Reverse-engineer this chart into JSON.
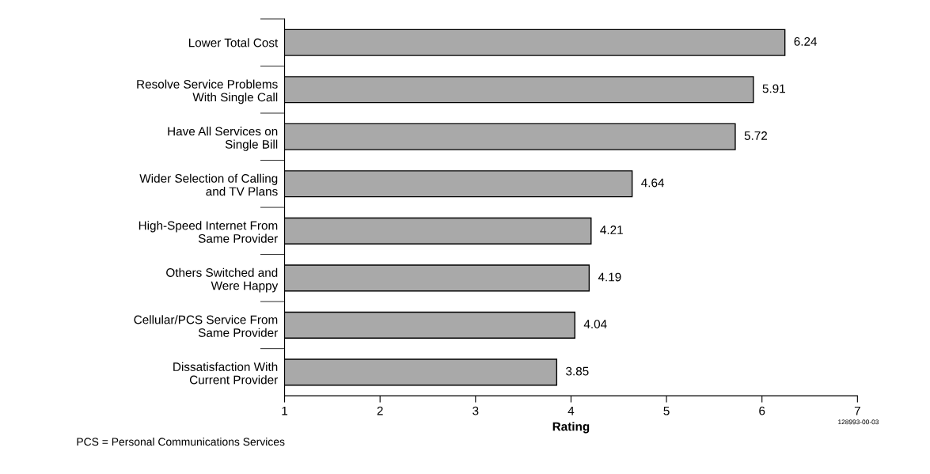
{
  "chart_data": {
    "type": "bar",
    "orientation": "horizontal",
    "xlabel": "Rating",
    "categories": [
      "Lower Total Cost",
      "Resolve Service Problems\nWith Single Call",
      "Have All Services on\nSingle Bill",
      "Wider Selection of Calling\nand TV Plans",
      "High-Speed Internet From\nSame Provider",
      "Others Switched and\nWere Happy",
      "Cellular/PCS Service From\nSame Provider",
      "Dissatisfaction With\nCurrent Provider"
    ],
    "values": [
      6.24,
      5.91,
      5.72,
      4.64,
      4.21,
      4.19,
      4.04,
      3.85
    ],
    "color": "#a9a9a9",
    "xlim": [
      1,
      7
    ],
    "xticks": [
      1,
      2,
      3,
      4,
      5,
      6,
      7
    ],
    "grid": false,
    "data_labels": true,
    "annotations": [
      "128993-00-03",
      "PCS = Personal Communications Services"
    ]
  }
}
